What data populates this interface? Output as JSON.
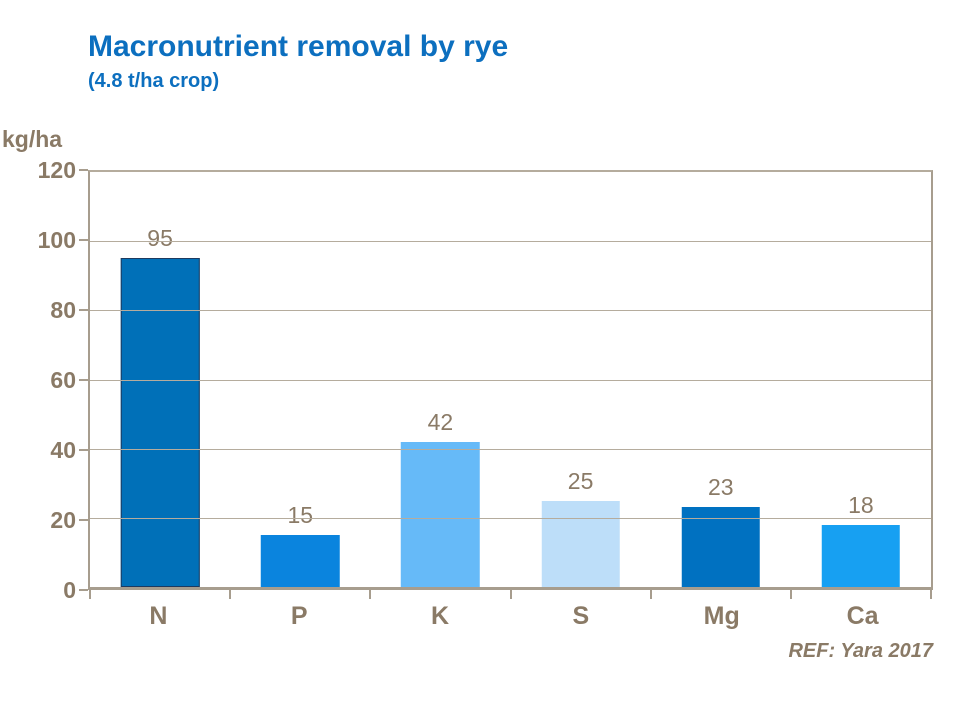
{
  "header": {
    "title": "Macronutrient removal by rye",
    "subtitle": "(4.8 t/ha crop)"
  },
  "axis": {
    "unit_label": "kg/ha"
  },
  "footer": {
    "reference": "REF: Yara 2017"
  },
  "colors": {
    "title_blue": "#0C6FBF",
    "label_brown": "#8A7A66",
    "axis_line": "#A79D8E",
    "gridline": "#B5AC9D",
    "background": "#FFFFFF"
  },
  "chart_data": {
    "type": "bar",
    "title": "Macronutrient removal by rye",
    "subtitle": "(4.8 t/ha crop)",
    "xlabel": "",
    "ylabel": "kg/ha",
    "categories": [
      "N",
      "P",
      "K",
      "S",
      "Mg",
      "Ca"
    ],
    "values": [
      95,
      15,
      42,
      25,
      23,
      18
    ],
    "bar_colors": [
      "#0070B8",
      "#0A84DE",
      "#66BAF8",
      "#BDDEF9",
      "#0071C1",
      "#17A0F2"
    ],
    "bar_border_color": "#1E3A5F",
    "bordered_bar_index": 0,
    "ylim": [
      0,
      120
    ],
    "yticks": [
      0,
      20,
      40,
      60,
      80,
      100,
      120
    ],
    "grid": true,
    "legend_position": "none",
    "data_labels": true,
    "reference": "REF: Yara 2017"
  }
}
